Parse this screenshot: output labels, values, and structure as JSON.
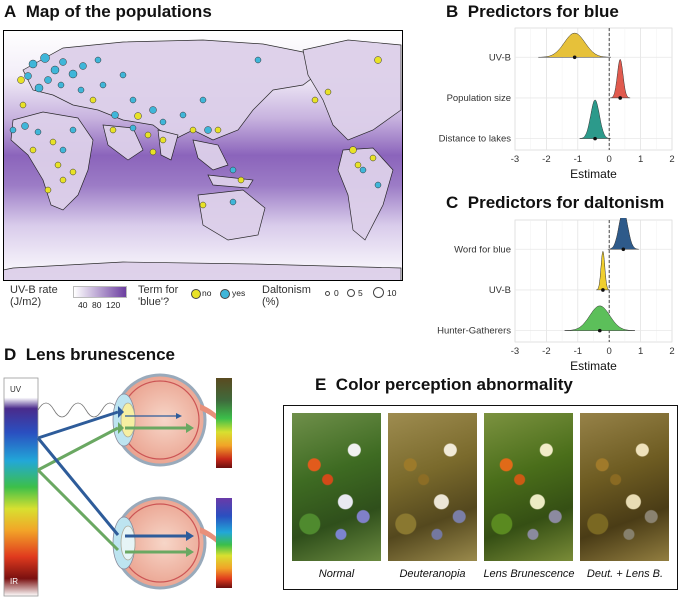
{
  "panelA": {
    "letter": "A",
    "title": "Map of the populations",
    "legend": {
      "rate_title": "UV-B rate",
      "rate_unit": "(J/m2)",
      "rate_ticks": [
        "40",
        "80",
        "120"
      ],
      "term_title": "Term for",
      "term_title2": "'blue'?",
      "no_label": "no",
      "yes_label": "yes",
      "dalt_title": "Daltonism",
      "dalt_unit": "(%)",
      "dalt_ticks": [
        "0",
        "5",
        "10"
      ]
    },
    "colors": {
      "no": "#e8e227",
      "yes": "#3fb6d9",
      "uv_low": "#ffffff",
      "uv_high": "#6c3ea0"
    }
  },
  "panelB": {
    "letter": "B",
    "title": "Predictors for blue",
    "xlabel": "Estimate",
    "ticks": [
      "-3",
      "-2",
      "-1",
      "0",
      "1",
      "2"
    ]
  },
  "panelC": {
    "letter": "C",
    "title": "Predictors for daltonism",
    "xlabel": "Estimate",
    "ticks": [
      "-3",
      "-2",
      "-1",
      "0",
      "1",
      "2"
    ]
  },
  "panelD": {
    "letter": "D",
    "title": "Lens brunescence",
    "uv_label": "UV",
    "ir_label": "IR"
  },
  "panelE": {
    "letter": "E",
    "title": "Color perception abnormality",
    "captions": [
      "Normal",
      "Deuteranopia",
      "Lens Brunescence",
      "Deut. + Lens B."
    ]
  },
  "chart_data": [
    {
      "type": "density",
      "panel": "B",
      "title": "Predictors for blue",
      "xlabel": "Estimate",
      "xlim": [
        -3,
        2
      ],
      "grid": true,
      "zero_line": "dashed",
      "series": [
        {
          "name": "UV-B",
          "mean": -1.1,
          "sd": 0.33,
          "color": "#e6c13a"
        },
        {
          "name": "Population size",
          "mean": 0.35,
          "sd": 0.09,
          "color": "#e05a4e"
        },
        {
          "name": "Distance to lakes",
          "mean": -0.45,
          "sd": 0.14,
          "color": "#2c9a8b"
        }
      ]
    },
    {
      "type": "density",
      "panel": "C",
      "title": "Predictors for daltonism",
      "xlabel": "Estimate",
      "xlim": [
        -3,
        2
      ],
      "grid": true,
      "zero_line": "dashed",
      "series": [
        {
          "name": "Word for blue",
          "mean": 0.45,
          "sd": 0.14,
          "color": "#2e5a8a"
        },
        {
          "name": "UV-B",
          "mean": -0.2,
          "sd": 0.06,
          "color": "#f0cf2e"
        },
        {
          "name": "Hunter-Gatherers",
          "mean": -0.3,
          "sd": 0.32,
          "color": "#5cbf5a"
        }
      ]
    }
  ]
}
